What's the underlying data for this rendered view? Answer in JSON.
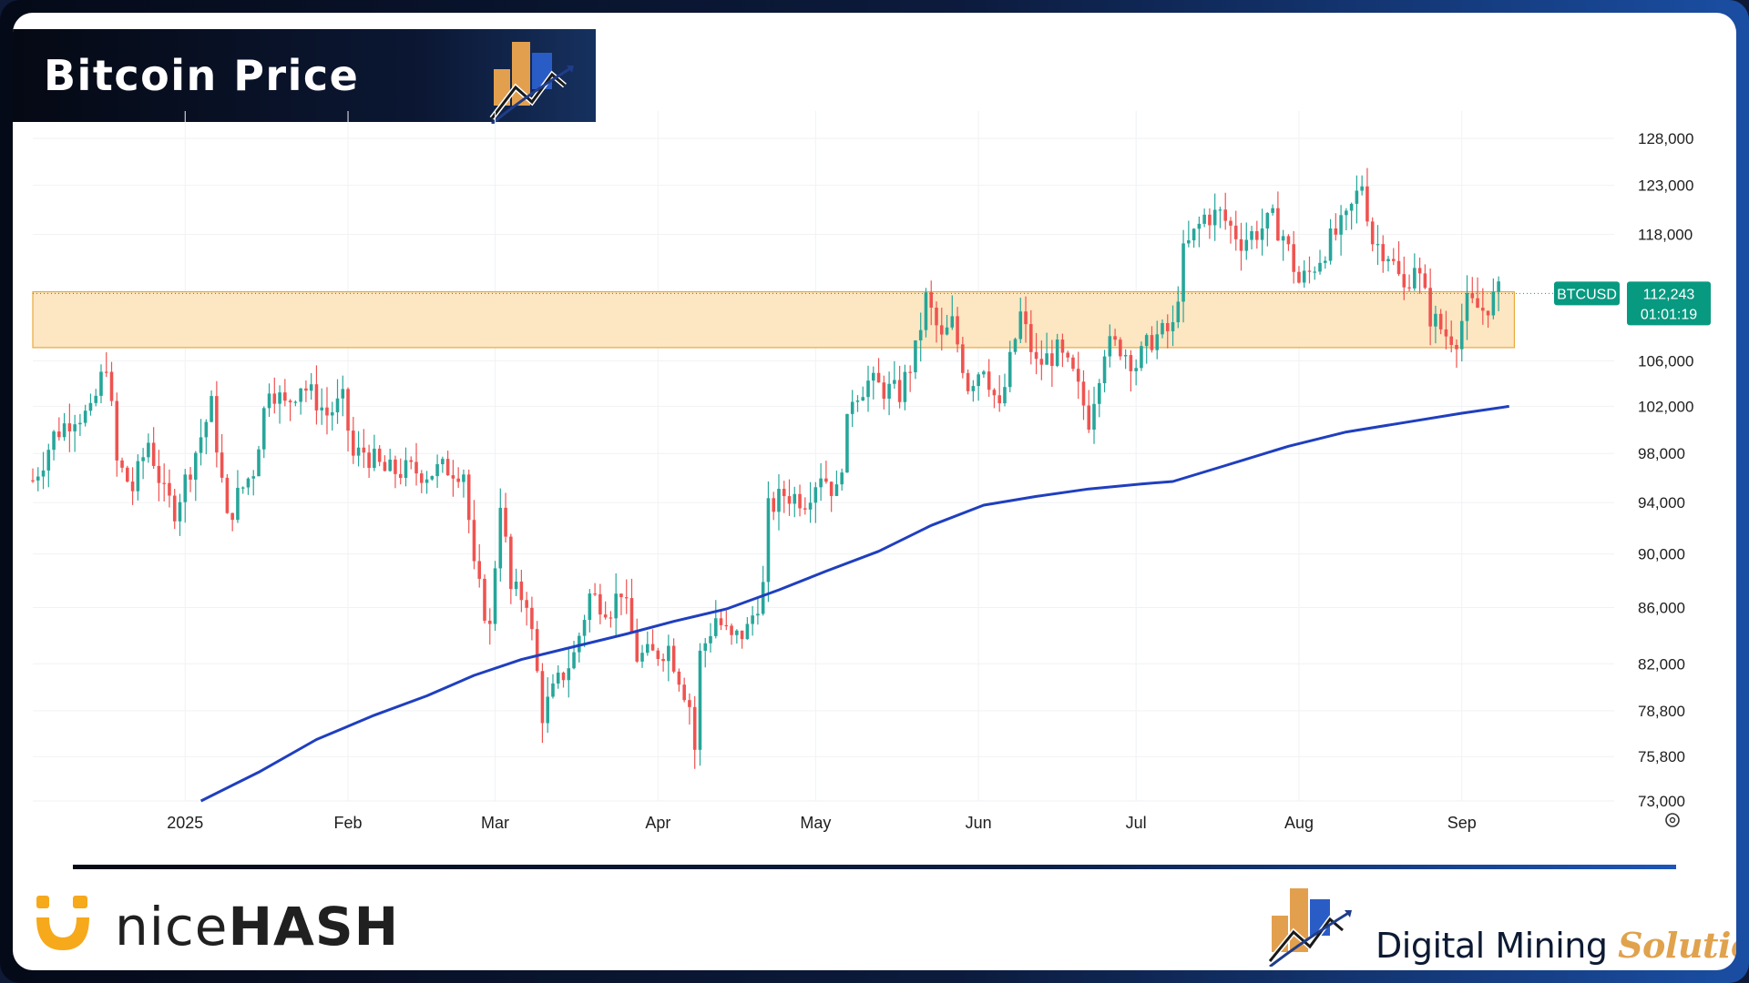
{
  "header": {
    "title": "Bitcoin Price"
  },
  "footer": {
    "brand_left_light": "nice",
    "brand_left_bold": "HASH",
    "brand_right_main": "Digital Mining ",
    "brand_right_accent": "Solutions"
  },
  "colors": {
    "up": "#26a69a",
    "down": "#ef5350",
    "ma": "#1f3fbf",
    "zone_fill": "#fde6c2",
    "zone_border": "#e8a93b",
    "tag_bg": "#089981"
  },
  "icons": [
    "bar-chart-logo-icon",
    "smile-logo-icon",
    "settings-gear-icon"
  ],
  "chart_data": {
    "type": "candlestick",
    "symbol": "BTCUSD",
    "last_price_label": "112,243",
    "countdown_label": "01:01:19",
    "y_ticks": [
      73000,
      75800,
      78800,
      82000,
      86000,
      90000,
      94000,
      98000,
      102000,
      106000,
      118000,
      123000,
      128000
    ],
    "y_tick_labels": [
      "73,000",
      "75,800",
      "78,800",
      "82,000",
      "86,000",
      "90,000",
      "94,000",
      "98,000",
      "102,000",
      "106,000",
      "118,000",
      "123,000",
      "128,000"
    ],
    "ylim": [
      73000,
      131000
    ],
    "y_scale": "log",
    "x_range": [
      "2024-12-03",
      "2025-09-30"
    ],
    "months": [
      {
        "date": "2025-01-01",
        "label": "2025"
      },
      {
        "date": "2025-02-01",
        "label": "Feb"
      },
      {
        "date": "2025-03-01",
        "label": "Mar"
      },
      {
        "date": "2025-04-01",
        "label": "Apr"
      },
      {
        "date": "2025-05-01",
        "label": "May"
      },
      {
        "date": "2025-06-01",
        "label": "Jun"
      },
      {
        "date": "2025-07-01",
        "label": "Jul"
      },
      {
        "date": "2025-08-01",
        "label": "Aug"
      },
      {
        "date": "2025-09-01",
        "label": "Sep"
      }
    ],
    "zone": {
      "low": 107200,
      "high": 112400,
      "start": "2024-12-03",
      "end": "2025-09-11"
    },
    "close_path": [
      [
        "2024-12-03",
        95800
      ],
      [
        "2024-12-05",
        97500
      ],
      [
        "2024-12-07",
        99500
      ],
      [
        "2024-12-11",
        101300
      ],
      [
        "2024-12-14",
        101200
      ],
      [
        "2024-12-17",
        106000
      ],
      [
        "2024-12-19",
        97200
      ],
      [
        "2024-12-22",
        95100
      ],
      [
        "2024-12-25",
        99000
      ],
      [
        "2024-12-28",
        94600
      ],
      [
        "2024-12-30",
        93500
      ],
      [
        "2025-01-02",
        96900
      ],
      [
        "2025-01-06",
        102000
      ],
      [
        "2025-01-09",
        92500
      ],
      [
        "2025-01-11",
        94500
      ],
      [
        "2025-01-14",
        96700
      ],
      [
        "2025-01-17",
        104000
      ],
      [
        "2025-01-20",
        102000
      ],
      [
        "2025-01-23",
        104000
      ],
      [
        "2025-01-26",
        102500
      ],
      [
        "2025-01-28",
        101300
      ],
      [
        "2025-01-31",
        102400
      ],
      [
        "2025-02-02",
        97700
      ],
      [
        "2025-02-04",
        98200
      ],
      [
        "2025-02-08",
        96500
      ],
      [
        "2025-02-13",
        96600
      ],
      [
        "2025-02-16",
        96400
      ],
      [
        "2025-02-20",
        96800
      ],
      [
        "2025-02-23",
        96600
      ],
      [
        "2025-02-25",
        88700
      ],
      [
        "2025-02-28",
        84400
      ],
      [
        "2025-03-02",
        94300
      ],
      [
        "2025-03-04",
        87200
      ],
      [
        "2025-03-07",
        86700
      ],
      [
        "2025-03-10",
        78600
      ],
      [
        "2025-03-13",
        80700
      ],
      [
        "2025-03-16",
        82600
      ],
      [
        "2025-03-19",
        86900
      ],
      [
        "2025-03-23",
        86000
      ],
      [
        "2025-03-25",
        87400
      ],
      [
        "2025-03-28",
        82500
      ],
      [
        "2025-03-31",
        82600
      ],
      [
        "2025-04-03",
        83200
      ],
      [
        "2025-04-07",
        79200
      ],
      [
        "2025-04-08",
        76300
      ],
      [
        "2025-04-09",
        82600
      ],
      [
        "2025-04-12",
        85300
      ],
      [
        "2025-04-15",
        83600
      ],
      [
        "2025-04-18",
        84400
      ],
      [
        "2025-04-21",
        87500
      ],
      [
        "2025-04-22",
        93400
      ],
      [
        "2025-04-25",
        94700
      ],
      [
        "2025-04-29",
        94300
      ],
      [
        "2025-05-02",
        96500
      ],
      [
        "2025-05-05",
        94700
      ],
      [
        "2025-05-08",
        103000
      ],
      [
        "2025-05-11",
        104100
      ],
      [
        "2025-05-14",
        103500
      ],
      [
        "2025-05-17",
        103100
      ],
      [
        "2025-05-20",
        106800
      ],
      [
        "2025-05-22",
        111700
      ],
      [
        "2025-05-25",
        107800
      ],
      [
        "2025-05-27",
        109400
      ],
      [
        "2025-05-30",
        103900
      ],
      [
        "2025-06-02",
        105800
      ],
      [
        "2025-06-05",
        101500
      ],
      [
        "2025-06-09",
        110200
      ],
      [
        "2025-06-12",
        105600
      ],
      [
        "2025-06-16",
        106800
      ],
      [
        "2025-06-19",
        104600
      ],
      [
        "2025-06-22",
        100900
      ],
      [
        "2025-06-25",
        107300
      ],
      [
        "2025-06-28",
        107300
      ],
      [
        "2025-07-01",
        105700
      ],
      [
        "2025-07-04",
        108000
      ],
      [
        "2025-07-08",
        108900
      ],
      [
        "2025-07-10",
        116000
      ],
      [
        "2025-07-14",
        119800
      ],
      [
        "2025-07-17",
        120000
      ],
      [
        "2025-07-21",
        117400
      ],
      [
        "2025-07-24",
        118300
      ],
      [
        "2025-07-27",
        119400
      ],
      [
        "2025-07-29",
        117900
      ],
      [
        "2025-08-01",
        113300
      ],
      [
        "2025-08-03",
        114200
      ],
      [
        "2025-08-07",
        117400
      ],
      [
        "2025-08-10",
        119300
      ],
      [
        "2025-08-13",
        123300
      ],
      [
        "2025-08-15",
        117400
      ],
      [
        "2025-08-18",
        116200
      ],
      [
        "2025-08-21",
        112500
      ],
      [
        "2025-08-23",
        115300
      ],
      [
        "2025-08-26",
        110100
      ],
      [
        "2025-08-29",
        108400
      ],
      [
        "2025-08-31",
        108200
      ],
      [
        "2025-09-02",
        111200
      ],
      [
        "2025-09-05",
        110700
      ],
      [
        "2025-09-08",
        112243
      ]
    ],
    "ma_path": [
      [
        "2025-01-04",
        73000
      ],
      [
        "2025-01-15",
        74800
      ],
      [
        "2025-01-26",
        76900
      ],
      [
        "2025-02-06",
        78500
      ],
      [
        "2025-02-16",
        79800
      ],
      [
        "2025-02-25",
        81200
      ],
      [
        "2025-03-06",
        82300
      ],
      [
        "2025-03-16",
        83200
      ],
      [
        "2025-03-26",
        84100
      ],
      [
        "2025-04-04",
        85000
      ],
      [
        "2025-04-14",
        85900
      ],
      [
        "2025-04-24",
        87300
      ],
      [
        "2025-05-03",
        88700
      ],
      [
        "2025-05-13",
        90200
      ],
      [
        "2025-05-23",
        92200
      ],
      [
        "2025-06-02",
        93800
      ],
      [
        "2025-06-12",
        94500
      ],
      [
        "2025-06-22",
        95100
      ],
      [
        "2025-07-02",
        95500
      ],
      [
        "2025-07-08",
        95700
      ],
      [
        "2025-07-18",
        97000
      ],
      [
        "2025-07-30",
        98600
      ],
      [
        "2025-08-10",
        99800
      ],
      [
        "2025-08-21",
        100600
      ],
      [
        "2025-09-01",
        101400
      ],
      [
        "2025-09-10",
        102000
      ]
    ]
  }
}
